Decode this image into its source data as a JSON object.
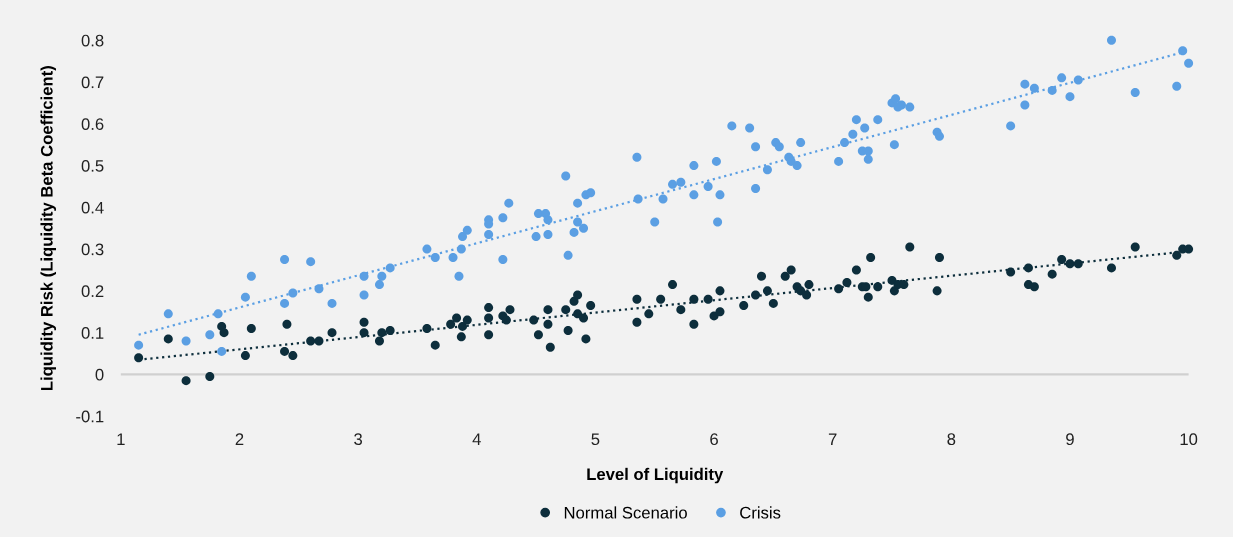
{
  "chart_data": {
    "type": "scatter",
    "xlabel": "Level of Liquidity",
    "ylabel": "Liquidity Risk (Liquidity Beta Coefficient)",
    "xlim": [
      1,
      10
    ],
    "ylim": [
      -0.1,
      0.8
    ],
    "xticks": [
      1,
      2,
      3,
      4,
      5,
      6,
      7,
      8,
      9,
      10
    ],
    "yticks": [
      -0.1,
      0,
      0.1,
      0.2,
      0.3,
      0.4,
      0.5,
      0.6,
      0.7,
      0.8
    ],
    "grid": false,
    "legend": "bottom",
    "marker": "circle",
    "ref_lines": [
      {
        "axis": "y",
        "value": 0,
        "color": "#d0d0d0",
        "line_style": "solid"
      }
    ],
    "series": [
      {
        "name": "Normal Scenario",
        "color": "#0d2e3c",
        "x": [
          1.15,
          1.4,
          1.55,
          1.75,
          1.85,
          1.87,
          2.05,
          2.1,
          2.38,
          2.4,
          2.45,
          2.6,
          2.67,
          2.78,
          3.05,
          3.05,
          3.18,
          3.2,
          3.27,
          3.58,
          3.65,
          3.78,
          3.83,
          3.87,
          3.88,
          3.92,
          4.1,
          4.1,
          4.1,
          4.22,
          4.25,
          4.28,
          4.48,
          4.52,
          4.6,
          4.6,
          4.62,
          4.75,
          4.77,
          4.82,
          4.85,
          4.85,
          4.9,
          4.92,
          4.96,
          5.35,
          5.35,
          5.45,
          5.55,
          5.65,
          5.72,
          5.83,
          5.83,
          5.95,
          6.0,
          6.05,
          6.05,
          6.25,
          6.35,
          6.4,
          6.45,
          6.5,
          6.6,
          6.65,
          6.7,
          6.73,
          6.78,
          6.8,
          7.05,
          7.12,
          7.2,
          7.25,
          7.28,
          7.3,
          7.32,
          7.38,
          7.5,
          7.52,
          7.55,
          7.6,
          7.65,
          7.88,
          7.9,
          8.5,
          8.65,
          8.65,
          8.7,
          8.85,
          8.93,
          9.0,
          9.07,
          9.35,
          9.55,
          9.9,
          9.95,
          10.0
        ],
        "values": [
          0.04,
          0.085,
          -0.015,
          -0.005,
          0.115,
          0.1,
          0.045,
          0.11,
          0.055,
          0.12,
          0.045,
          0.08,
          0.08,
          0.1,
          0.125,
          0.1,
          0.08,
          0.1,
          0.105,
          0.11,
          0.07,
          0.12,
          0.135,
          0.09,
          0.115,
          0.13,
          0.16,
          0.135,
          0.095,
          0.14,
          0.13,
          0.155,
          0.13,
          0.095,
          0.155,
          0.12,
          0.065,
          0.155,
          0.105,
          0.175,
          0.19,
          0.145,
          0.135,
          0.085,
          0.165,
          0.125,
          0.18,
          0.145,
          0.18,
          0.215,
          0.155,
          0.18,
          0.12,
          0.18,
          0.14,
          0.15,
          0.2,
          0.165,
          0.19,
          0.235,
          0.2,
          0.17,
          0.235,
          0.25,
          0.21,
          0.2,
          0.19,
          0.215,
          0.205,
          0.22,
          0.25,
          0.21,
          0.21,
          0.185,
          0.28,
          0.21,
          0.225,
          0.2,
          0.215,
          0.215,
          0.305,
          0.2,
          0.28,
          0.245,
          0.255,
          0.215,
          0.21,
          0.24,
          0.275,
          0.265,
          0.265,
          0.255,
          0.305,
          0.285,
          0.3,
          0.3
        ]
      },
      {
        "name": "Crisis",
        "color": "#5b9fe3",
        "x": [
          1.15,
          1.4,
          1.55,
          1.75,
          1.82,
          1.85,
          2.05,
          2.1,
          2.38,
          2.38,
          2.45,
          2.6,
          2.67,
          2.78,
          3.05,
          3.05,
          3.18,
          3.2,
          3.27,
          3.58,
          3.65,
          3.8,
          3.85,
          3.87,
          3.88,
          3.92,
          4.1,
          4.1,
          4.1,
          4.22,
          4.22,
          4.27,
          4.5,
          4.52,
          4.58,
          4.6,
          4.6,
          4.75,
          4.77,
          4.82,
          4.85,
          4.85,
          4.9,
          4.92,
          4.96,
          5.35,
          5.36,
          5.5,
          5.57,
          5.65,
          5.72,
          5.83,
          5.83,
          5.95,
          6.02,
          6.03,
          6.05,
          6.15,
          6.3,
          6.35,
          6.35,
          6.45,
          6.52,
          6.55,
          6.63,
          6.65,
          6.7,
          6.73,
          7.05,
          7.1,
          7.17,
          7.2,
          7.25,
          7.27,
          7.3,
          7.3,
          7.38,
          7.5,
          7.52,
          7.53,
          7.55,
          7.58,
          7.65,
          7.88,
          7.9,
          8.5,
          8.62,
          8.62,
          8.7,
          8.85,
          8.93,
          9.0,
          9.07,
          9.35,
          9.55,
          9.9,
          9.95,
          10.0
        ],
        "values": [
          0.07,
          0.145,
          0.08,
          0.095,
          0.145,
          0.055,
          0.185,
          0.235,
          0.275,
          0.17,
          0.195,
          0.27,
          0.205,
          0.17,
          0.235,
          0.19,
          0.215,
          0.235,
          0.255,
          0.3,
          0.28,
          0.28,
          0.235,
          0.3,
          0.33,
          0.345,
          0.37,
          0.36,
          0.335,
          0.375,
          0.275,
          0.41,
          0.33,
          0.385,
          0.385,
          0.37,
          0.335,
          0.475,
          0.285,
          0.34,
          0.41,
          0.365,
          0.35,
          0.43,
          0.435,
          0.52,
          0.42,
          0.365,
          0.42,
          0.455,
          0.46,
          0.5,
          0.43,
          0.45,
          0.51,
          0.365,
          0.43,
          0.595,
          0.59,
          0.545,
          0.445,
          0.49,
          0.555,
          0.545,
          0.52,
          0.51,
          0.5,
          0.555,
          0.51,
          0.555,
          0.575,
          0.61,
          0.535,
          0.59,
          0.535,
          0.515,
          0.61,
          0.65,
          0.55,
          0.66,
          0.64,
          0.645,
          0.64,
          0.58,
          0.57,
          0.595,
          0.695,
          0.645,
          0.685,
          0.68,
          0.71,
          0.665,
          0.705,
          0.8,
          0.675,
          0.69,
          0.775,
          0.745
        ]
      },
      {
        "type": "line",
        "color": "#0d2e3c",
        "line_style": "dotted",
        "marker": "none",
        "x": [
          1.15,
          10.0
        ],
        "values": [
          0.035,
          0.295
        ]
      },
      {
        "type": "line",
        "color": "#5b9fe3",
        "line_style": "dotted",
        "marker": "none",
        "x": [
          1.15,
          10.0
        ],
        "values": [
          0.095,
          0.775
        ]
      }
    ]
  }
}
